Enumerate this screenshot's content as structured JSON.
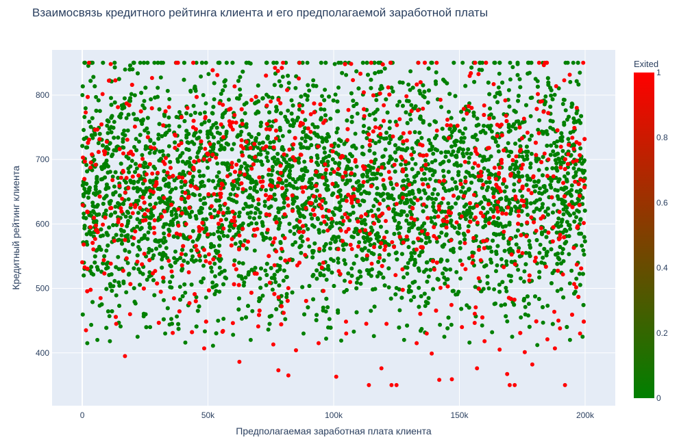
{
  "chart_data": {
    "type": "scatter",
    "title": "Взаимосвязь кредитного рейтинга клиента и его предполагаемой заработной платы",
    "xlabel": "Предполагаемая заработная плата клиента",
    "ylabel": "Кредитный рейтинг клиента",
    "xlim": [
      -12000,
      212000
    ],
    "ylim": [
      318,
      870
    ],
    "x_ticks": [
      0,
      50000,
      100000,
      150000,
      200000
    ],
    "x_tick_labels": [
      "0",
      "50k",
      "100k",
      "150k",
      "200k"
    ],
    "y_ticks": [
      400,
      500,
      600,
      700,
      800
    ],
    "y_tick_labels": [
      "400",
      "500",
      "600",
      "700",
      "800"
    ],
    "grid": true,
    "colorscale": {
      "title": "Exited",
      "min": 0,
      "max": 1,
      "low_color": "#008000",
      "high_color": "#ff0000",
      "ticks": [
        0,
        0.2,
        0.4,
        0.6,
        0.8,
        1
      ],
      "tick_labels": [
        "0",
        "0.2",
        "0.4",
        "0.6",
        "0.8",
        "1"
      ]
    },
    "background_color": "#e5ecf6",
    "series": [
      {
        "color_value": 1,
        "points": [
          [
            17000,
            395
          ],
          [
            48500,
            407
          ],
          [
            62500,
            386
          ],
          [
            78000,
            373
          ],
          [
            82000,
            365
          ],
          [
            101000,
            363
          ],
          [
            114000,
            350
          ],
          [
            119000,
            376
          ],
          [
            123000,
            350
          ],
          [
            125000,
            350
          ],
          [
            139000,
            399
          ],
          [
            142000,
            358
          ],
          [
            147000,
            359
          ],
          [
            157000,
            376
          ],
          [
            169000,
            367
          ],
          [
            170000,
            350
          ],
          [
            172000,
            350
          ],
          [
            179000,
            382
          ],
          [
            188000,
            407
          ],
          [
            192000,
            350
          ],
          [
            1500,
            435
          ],
          [
            13500,
            445
          ],
          [
            19000,
            460
          ],
          [
            36000,
            431
          ],
          [
            56000,
            434
          ],
          [
            70000,
            441
          ],
          [
            76000,
            413
          ],
          [
            85000,
            404
          ],
          [
            94000,
            415
          ],
          [
            105000,
            430
          ],
          [
            121000,
            445
          ],
          [
            133000,
            415
          ],
          [
            137000,
            430
          ],
          [
            151000,
            440
          ],
          [
            160000,
            418
          ],
          [
            166000,
            405
          ],
          [
            176000,
            401
          ],
          [
            185000,
            421
          ],
          [
            190000,
            438
          ],
          [
            198000,
            430
          ]
        ]
      },
      {
        "color_value": 0,
        "points": [
          [
            2000,
            415
          ],
          [
            6000,
            420
          ],
          [
            11000,
            418
          ],
          [
            22000,
            425
          ],
          [
            27000,
            440
          ],
          [
            33000,
            430
          ],
          [
            41000,
            416
          ],
          [
            52000,
            411
          ],
          [
            60000,
            428
          ],
          [
            67000,
            420
          ],
          [
            74000,
            436
          ],
          [
            88000,
            430
          ],
          [
            97000,
            422
          ],
          [
            103000,
            419
          ],
          [
            108000,
            433
          ],
          [
            116000,
            426
          ],
          [
            128000,
            420
          ],
          [
            135000,
            437
          ],
          [
            144000,
            425
          ],
          [
            154000,
            416
          ],
          [
            163000,
            432
          ],
          [
            171000,
            425
          ],
          [
            181000,
            412
          ],
          [
            194000,
            420
          ],
          [
            199000,
            425
          ]
        ]
      }
    ],
    "dense_band": {
      "x_range": [
        0,
        200000
      ],
      "y_range": [
        430,
        850
      ],
      "y_center": 650,
      "y_spread": 97,
      "y_cap": 850,
      "exited_share": 0.2
    }
  }
}
